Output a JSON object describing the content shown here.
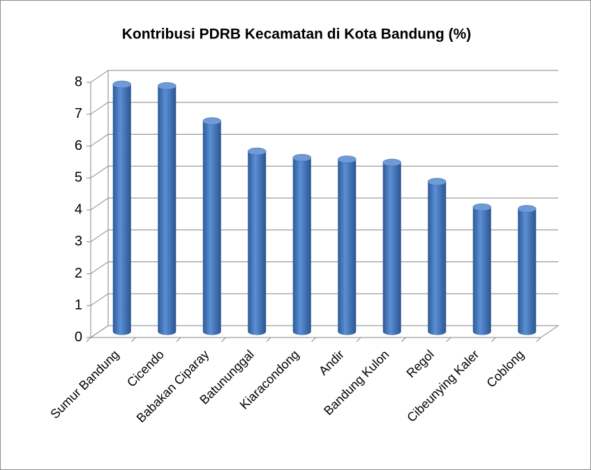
{
  "chart_data": {
    "type": "bar",
    "title": "Kontribusi PDRB Kecamatan di Kota Bandung (%)",
    "categories": [
      "Sumur Bandung",
      "Cicendo",
      "Babakan Ciparay",
      "Batununggal",
      "Kiaracondong",
      "Andir",
      "Bandung Kulon",
      "Regol",
      "Cibeunying Kaler",
      "Coblong"
    ],
    "values": [
      7.75,
      7.7,
      6.6,
      5.65,
      5.45,
      5.4,
      5.3,
      4.7,
      3.9,
      3.85
    ],
    "color": "#4a7ebb",
    "ylim": [
      0,
      8
    ],
    "yticks": [
      0,
      1,
      2,
      3,
      4,
      5,
      6,
      7,
      8
    ],
    "grid": true
  }
}
